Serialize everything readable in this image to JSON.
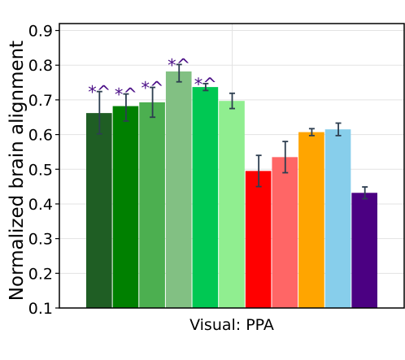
{
  "chart_data": {
    "type": "bar",
    "title": "",
    "xlabel": "Visual: PPA",
    "ylabel": "Normalized brain alignment",
    "ylim": [
      0.1,
      0.92
    ],
    "yticks": [
      0.1,
      0.2,
      0.3,
      0.4,
      0.5,
      0.6,
      0.7,
      0.8,
      0.9
    ],
    "ytick_labels": [
      "0.1",
      "0.2",
      "0.3",
      "0.4",
      "0.5",
      "0.6",
      "0.7",
      "0.8",
      "0.9"
    ],
    "grid": true,
    "legend": "none",
    "bars": [
      {
        "value": 0.662,
        "err_low": 0.06,
        "err_high": 0.062,
        "color": "#1f5e24",
        "annotation": "*^"
      },
      {
        "value": 0.682,
        "err_low": 0.043,
        "err_high": 0.035,
        "color": "#008000",
        "annotation": "*^"
      },
      {
        "value": 0.693,
        "err_low": 0.043,
        "err_high": 0.043,
        "color": "#4caf50",
        "annotation": "*^"
      },
      {
        "value": 0.782,
        "err_low": 0.03,
        "err_high": 0.02,
        "color": "#82c083",
        "annotation": "*^"
      },
      {
        "value": 0.737,
        "err_low": 0.01,
        "err_high": 0.01,
        "color": "#00c853",
        "annotation": "*^"
      },
      {
        "value": 0.697,
        "err_low": 0.022,
        "err_high": 0.022,
        "color": "#90ee90",
        "annotation": ""
      },
      {
        "value": 0.495,
        "err_low": 0.045,
        "err_high": 0.045,
        "color": "#ff0000",
        "annotation": ""
      },
      {
        "value": 0.535,
        "err_low": 0.045,
        "err_high": 0.045,
        "color": "#ff6666",
        "annotation": ""
      },
      {
        "value": 0.607,
        "err_low": 0.01,
        "err_high": 0.01,
        "color": "#ffa500",
        "annotation": ""
      },
      {
        "value": 0.615,
        "err_low": 0.018,
        "err_high": 0.018,
        "color": "#87ceeb",
        "annotation": ""
      },
      {
        "value": 0.432,
        "err_low": 0.017,
        "err_high": 0.017,
        "color": "#4b0082",
        "annotation": ""
      }
    ]
  }
}
